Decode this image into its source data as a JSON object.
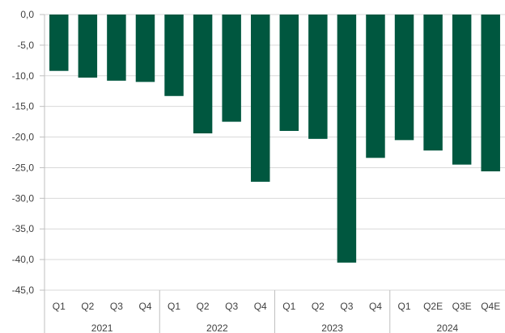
{
  "chart_data": {
    "type": "bar",
    "title": "",
    "xlabel": "",
    "ylabel": "",
    "ylim": [
      -45,
      0
    ],
    "yticks": [
      "0,0",
      "-5,0",
      "-10,0",
      "-15,0",
      "-20,0",
      "-25,0",
      "-30,0",
      "-35,0",
      "-40,0",
      "-45,0"
    ],
    "ytick_values": [
      0,
      -5,
      -10,
      -15,
      -20,
      -25,
      -30,
      -35,
      -40,
      -45
    ],
    "grid": true,
    "bar_color": "#00573F",
    "categories": [
      "Q1",
      "Q2",
      "Q3",
      "Q4",
      "Q1",
      "Q2",
      "Q3",
      "Q4",
      "Q1",
      "Q2",
      "Q3",
      "Q4",
      "Q1",
      "Q2E",
      "Q3E",
      "Q4E"
    ],
    "groups": [
      {
        "label": "2021",
        "count": 4
      },
      {
        "label": "2022",
        "count": 4
      },
      {
        "label": "2023",
        "count": 4
      },
      {
        "label": "2024",
        "count": 4
      }
    ],
    "values": [
      -9.2,
      -10.3,
      -10.8,
      -11.0,
      -13.3,
      -19.4,
      -17.5,
      -27.3,
      -19.0,
      -20.3,
      -40.5,
      -23.4,
      -20.5,
      -22.2,
      -24.5,
      -25.6
    ]
  }
}
